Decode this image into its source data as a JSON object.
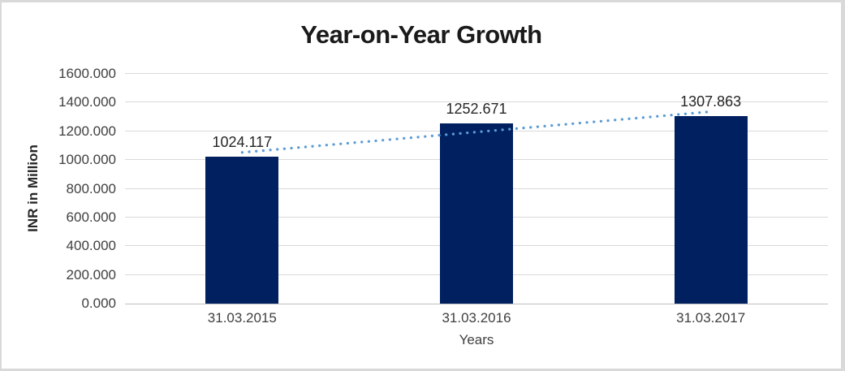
{
  "chart_data": {
    "type": "bar",
    "title": "Year-on-Year Growth",
    "categories": [
      "31.03.2015",
      "31.03.2016",
      "31.03.2017"
    ],
    "values": [
      1024.117,
      1252.671,
      1307.863
    ],
    "value_labels": [
      "1024.117",
      "1252.671",
      "1307.863"
    ],
    "xlabel": "Years",
    "ylabel": "INR in Million",
    "ylim": [
      0,
      1600
    ],
    "ytick_step": 200,
    "ytick_format_decimals": 3,
    "grid": true,
    "legend": "none",
    "bar_color": "#002060",
    "gridline_color": "#d9d9d9",
    "trendline": {
      "type": "linear",
      "style": "dotted",
      "color": "#5b9bd5"
    }
  }
}
